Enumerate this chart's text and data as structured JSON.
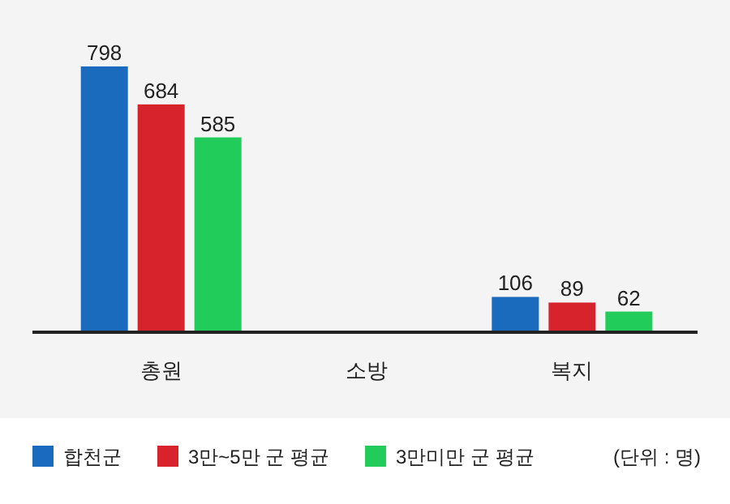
{
  "chart_data": {
    "type": "bar",
    "categories": [
      "총원",
      "소방",
      "복지"
    ],
    "series": [
      {
        "name": "합천군",
        "color": "#1a6bbd",
        "values": [
          798,
          null,
          106
        ]
      },
      {
        "name": "3만~5만 군 평균",
        "color": "#d6232c",
        "values": [
          684,
          null,
          89
        ]
      },
      {
        "name": "3만미만 군 평균",
        "color": "#22cc5a",
        "values": [
          585,
          null,
          62
        ]
      }
    ],
    "data_labels": true,
    "legend": "bottom",
    "annotations": [
      "(단위 : 명)"
    ]
  }
}
